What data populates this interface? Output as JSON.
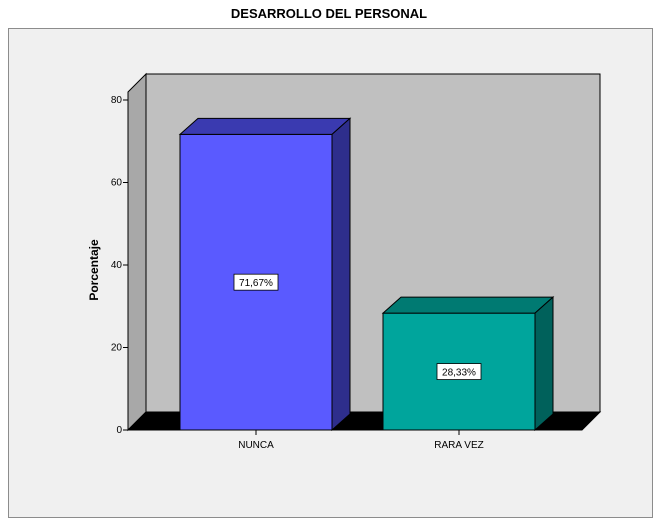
{
  "chart_data": {
    "type": "bar",
    "title": "DESARROLLO DEL PERSONAL",
    "xlabel": "",
    "ylabel": "Porcentaje",
    "categories": [
      "NUNCA",
      "RARA VEZ"
    ],
    "values": [
      71.67,
      28.33
    ],
    "data_labels": [
      "71,67%",
      "28,33%"
    ],
    "yticks": [
      "0",
      "20",
      "40",
      "60",
      "80"
    ],
    "ylim": [
      0,
      90
    ],
    "bar_colors": [
      "#5a5aff",
      "#00a59c"
    ],
    "bar_top_colors": [
      "#3a3ab0",
      "#007a72"
    ],
    "bar_side_colors": [
      "#2e2e8c",
      "#00615b"
    ],
    "wall_color": "#c0c0c0",
    "floor_color": "#000000",
    "grid": false,
    "legend": "none",
    "style": "3d"
  }
}
